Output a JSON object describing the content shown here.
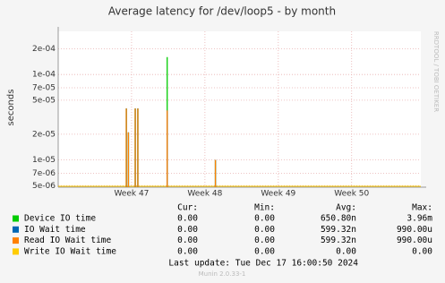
{
  "chart_data": {
    "type": "line",
    "title": "Average latency for /dev/loop5 - by month",
    "y_label": "seconds",
    "side_text": "RRDTOOL / TOBI OETIKER",
    "log_scale": true,
    "grid": true,
    "xlim": [
      0,
      34.6
    ],
    "xticks": [
      {
        "value": 7,
        "label": "Week 47"
      },
      {
        "value": 14,
        "label": "Week 48"
      },
      {
        "value": 21,
        "label": "Week 49"
      },
      {
        "value": 28,
        "label": "Week 50"
      }
    ],
    "ylim": [
      4.8e-06,
      0.00032
    ],
    "yticks": [
      {
        "value": 5e-06,
        "label": "5e-06"
      },
      {
        "value": 7e-06,
        "label": "7e-06"
      },
      {
        "value": 1e-05,
        "label": "1e-05"
      },
      {
        "value": 2e-05,
        "label": "2e-05"
      },
      {
        "value": 5e-05,
        "label": "5e-05"
      },
      {
        "value": 7e-05,
        "label": "7e-05"
      },
      {
        "value": 0.0001,
        "label": "1e-04"
      },
      {
        "value": 0.0002,
        "label": "2e-04"
      }
    ],
    "x": [
      6.5,
      6.7,
      7.35,
      7.6,
      10.4,
      15.0
    ],
    "series": [
      {
        "name": "Device IO time",
        "color": "#00cc00",
        "values": [
          4e-05,
          2.1e-05,
          4e-05,
          4e-05,
          0.00016,
          1e-05
        ]
      },
      {
        "name": "IO Wait time",
        "color": "#0066b3",
        "values": [
          4e-05,
          2.1e-05,
          4e-05,
          4e-05,
          3.8e-05,
          1e-05
        ]
      },
      {
        "name": "Read IO Wait time",
        "color": "#ff8000",
        "values": [
          4e-05,
          2.1e-05,
          4e-05,
          4e-05,
          3.8e-05,
          1e-05
        ]
      },
      {
        "name": "Write IO Wait time",
        "color": "#ffcc00",
        "values": [
          null,
          null,
          null,
          null,
          null,
          null
        ]
      }
    ],
    "legend_header": [
      "Cur:",
      "Min:",
      "Avg:",
      "Max:"
    ],
    "legend_rows": [
      [
        "0.00",
        "0.00",
        "650.80n",
        "3.96m"
      ],
      [
        "0.00",
        "0.00",
        "599.32n",
        "990.00u"
      ],
      [
        "0.00",
        "0.00",
        "599.32n",
        "990.00u"
      ],
      [
        "0.00",
        "0.00",
        "0.00",
        "0.00"
      ]
    ],
    "last_update": "Last update:  Tue Dec 17 16:00:50 2024",
    "footer": "Munin 2.0.33-1"
  }
}
